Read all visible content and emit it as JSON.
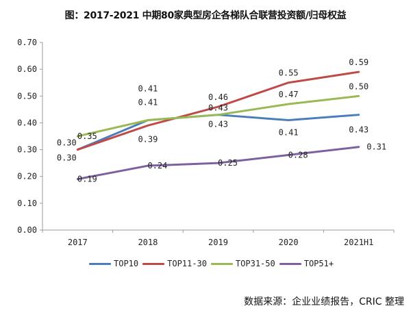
{
  "title": "图：2017-2021 中期80家典型房企各梯队合联营投资额/归母权益",
  "source": "数据来源：企业业绩报告，CRIC 整理",
  "chart_data": {
    "type": "line",
    "title": "图：2017-2021 中期80家典型房企各梯队合联营投资额/归母权益",
    "xlabel": "",
    "ylabel": "",
    "ylim": [
      0,
      0.7
    ],
    "yticks": [
      "0.00",
      "0.10",
      "0.20",
      "0.30",
      "0.40",
      "0.50",
      "0.60",
      "0.70"
    ],
    "grid": false,
    "legend_position": "bottom",
    "categories": [
      "2017",
      "2018",
      "2019",
      "2020",
      "2021H1"
    ],
    "series": [
      {
        "name": "TOP10",
        "color": "#4a7ebb",
        "values": [
          0.3,
          0.41,
          0.43,
          0.41,
          0.43
        ],
        "labels": [
          "0.30",
          "0.41",
          "0.43",
          "0.41",
          "0.43"
        ]
      },
      {
        "name": "TOP11-30",
        "color": "#be4b48",
        "values": [
          0.3,
          0.39,
          0.46,
          0.55,
          0.59
        ],
        "labels": [
          "0.30",
          "0.39",
          "0.46",
          "0.55",
          "0.59"
        ]
      },
      {
        "name": "TOP31-50",
        "color": "#98b954",
        "values": [
          0.35,
          0.41,
          0.43,
          0.47,
          0.5
        ],
        "labels": [
          "0.35",
          "0.41",
          "0.43",
          "0.47",
          "0.50"
        ]
      },
      {
        "name": "TOP51+",
        "color": "#7d60a0",
        "values": [
          0.19,
          0.24,
          0.25,
          0.28,
          0.31
        ],
        "labels": [
          "0.19",
          "0.24",
          "0.25",
          "0.28",
          "0.31"
        ]
      }
    ]
  }
}
